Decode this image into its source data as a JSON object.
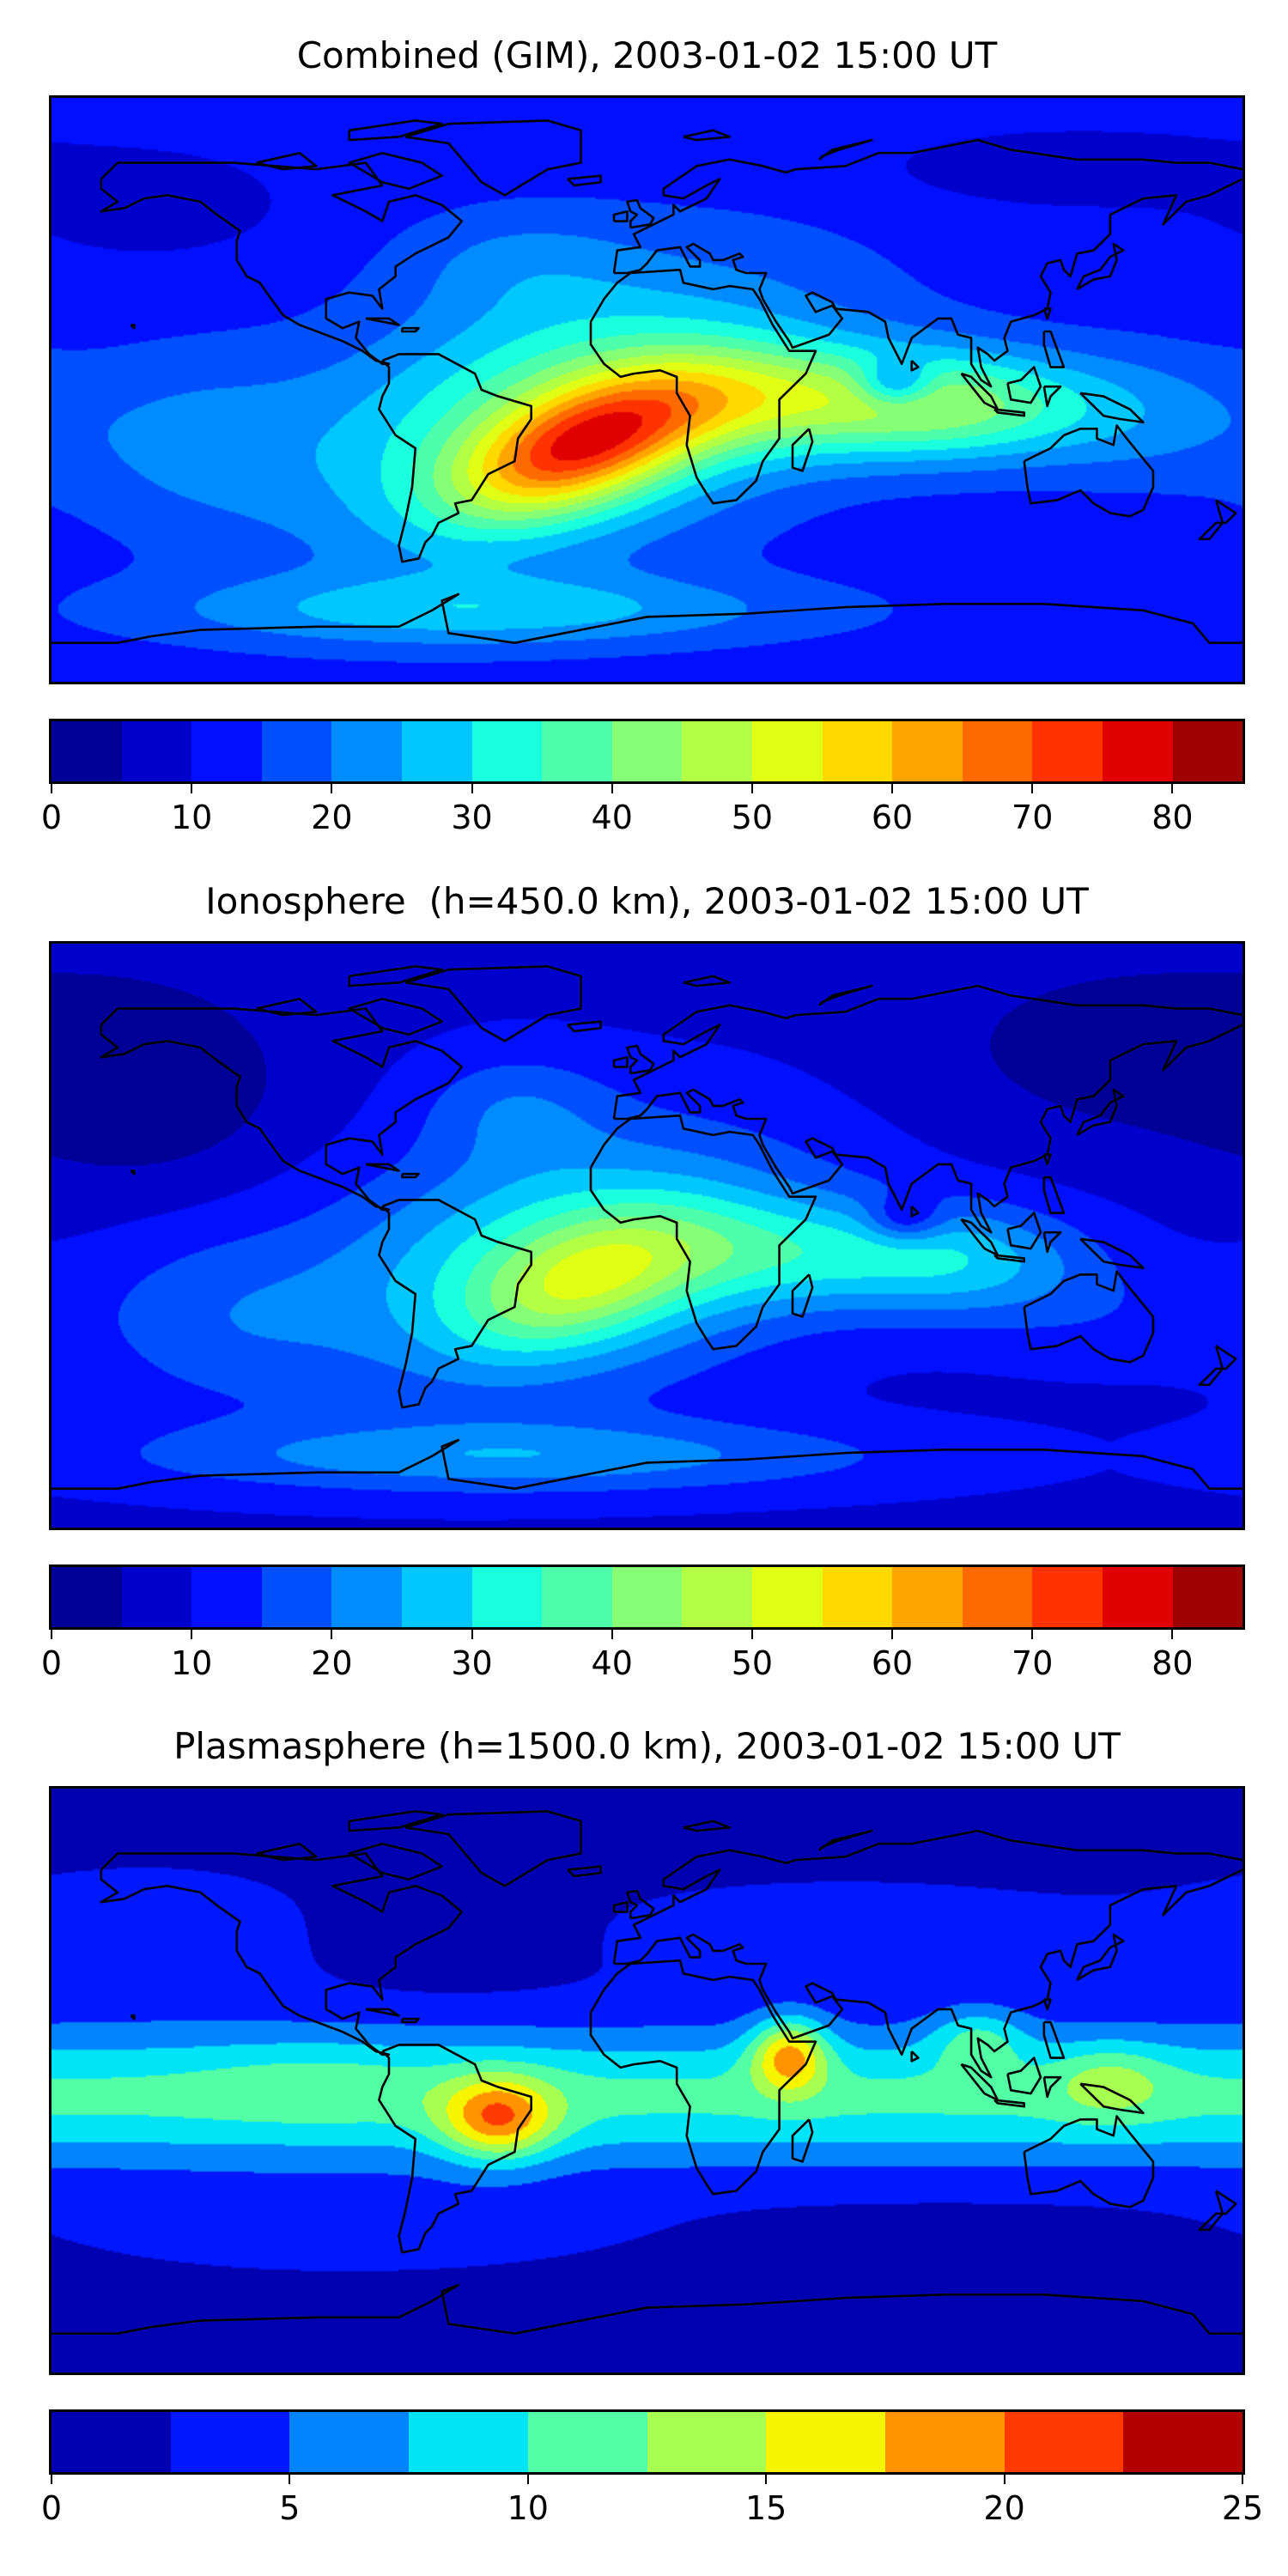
{
  "panels": [
    {
      "title": "Combined (GIM), 2003-01-02 15:00 UT",
      "colorbar": {
        "min": 0,
        "max": 85,
        "colors": [
          "#000096",
          "#0000cd",
          "#0010ff",
          "#0050ff",
          "#008cff",
          "#00c8ff",
          "#1affdd",
          "#4dffaa",
          "#86ff76",
          "#b3ff44",
          "#e0ff14",
          "#ffd900",
          "#ffa400",
          "#ff6a00",
          "#ff3300",
          "#e00000",
          "#9f0000"
        ],
        "ticks": [
          {
            "value": 0,
            "label": "0"
          },
          {
            "value": 10,
            "label": "10"
          },
          {
            "value": 20,
            "label": "20"
          },
          {
            "value": 30,
            "label": "30"
          },
          {
            "value": 40,
            "label": "40"
          },
          {
            "value": 50,
            "label": "50"
          },
          {
            "value": 60,
            "label": "60"
          },
          {
            "value": 70,
            "label": "70"
          },
          {
            "value": 80,
            "label": "80"
          }
        ]
      }
    },
    {
      "title": "Ionosphere  (h=450.0 km), 2003-01-02 15:00 UT",
      "colorbar": {
        "min": 0,
        "max": 85,
        "colors": [
          "#000096",
          "#0000cd",
          "#0010ff",
          "#0050ff",
          "#008cff",
          "#00c8ff",
          "#1affdd",
          "#4dffaa",
          "#86ff76",
          "#b3ff44",
          "#e0ff14",
          "#ffd900",
          "#ffa400",
          "#ff6a00",
          "#ff3300",
          "#e00000",
          "#9f0000"
        ],
        "ticks": [
          {
            "value": 0,
            "label": "0"
          },
          {
            "value": 10,
            "label": "10"
          },
          {
            "value": 20,
            "label": "20"
          },
          {
            "value": 30,
            "label": "30"
          },
          {
            "value": 40,
            "label": "40"
          },
          {
            "value": 50,
            "label": "50"
          },
          {
            "value": 60,
            "label": "60"
          },
          {
            "value": 70,
            "label": "70"
          },
          {
            "value": 80,
            "label": "80"
          }
        ]
      }
    },
    {
      "title": "Plasmasphere (h=1500.0 km), 2003-01-02 15:00 UT",
      "colorbar": {
        "min": 0,
        "max": 25,
        "colors": [
          "#0000b0",
          "#0018ff",
          "#0084ff",
          "#00e4f8",
          "#52ffa5",
          "#a6ff51",
          "#f8f500",
          "#ff9400",
          "#ff3a00",
          "#b20000"
        ],
        "ticks": [
          {
            "value": 0,
            "label": "0"
          },
          {
            "value": 5,
            "label": "5"
          },
          {
            "value": 10,
            "label": "10"
          },
          {
            "value": 15,
            "label": "15"
          },
          {
            "value": 20,
            "label": "20"
          },
          {
            "value": 25,
            "label": "25"
          }
        ]
      }
    }
  ]
}
